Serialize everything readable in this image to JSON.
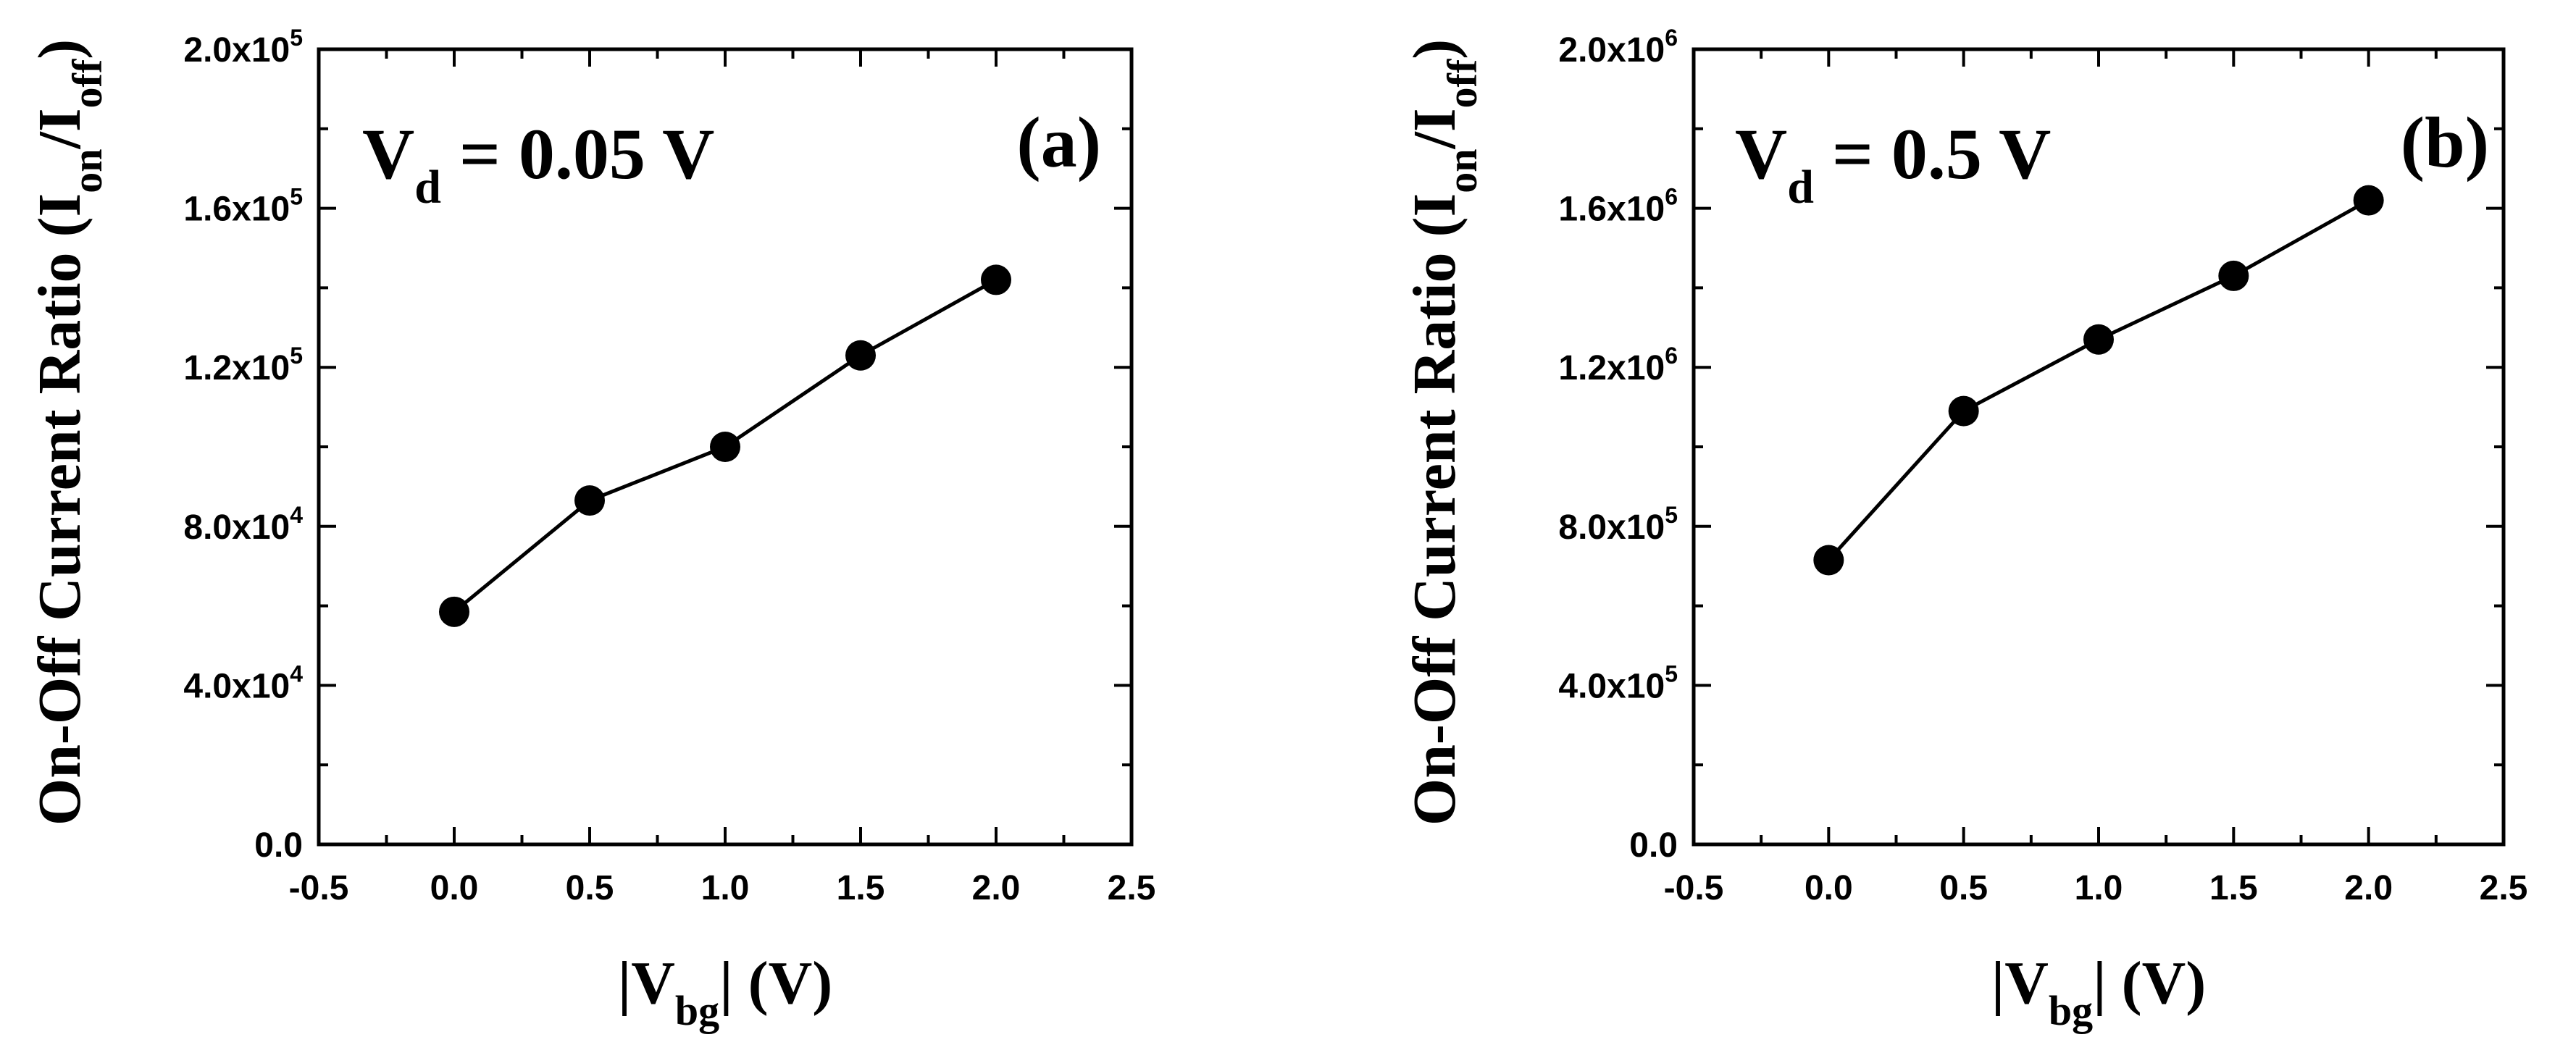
{
  "chart_data": [
    {
      "panel": "a",
      "type": "line",
      "marker": "filled-circle",
      "annotation": {
        "main": "V",
        "sub": "d",
        "rest": " = 0.05 V"
      },
      "panel_label": "(a)",
      "xlabel": {
        "pre": "|V",
        "sub": "bg",
        "post": "| (V)"
      },
      "ylabel": {
        "pre": "On-Off Current Ratio (I",
        "sub1": "on",
        "mid": "/I",
        "sub2": "off",
        "post": ")"
      },
      "xlim": [
        -0.5,
        2.5
      ],
      "ylim": [
        0,
        200000
      ],
      "x_ticks": [
        "-0.5",
        "0.0",
        "0.5",
        "1.0",
        "1.5",
        "2.0",
        "2.5"
      ],
      "y_ticks": [
        {
          "mant": "0.0",
          "exp": ""
        },
        {
          "mant": "4.0x10",
          "exp": "4"
        },
        {
          "mant": "8.0x10",
          "exp": "4"
        },
        {
          "mant": "1.2x10",
          "exp": "5"
        },
        {
          "mant": "1.6x10",
          "exp": "5"
        },
        {
          "mant": "2.0x10",
          "exp": "5"
        }
      ],
      "x": [
        0.0,
        0.5,
        1.0,
        1.5,
        2.0
      ],
      "y": [
        58500,
        86500,
        100000,
        123000,
        142000
      ]
    },
    {
      "panel": "b",
      "type": "line",
      "marker": "filled-circle",
      "annotation": {
        "main": "V",
        "sub": "d",
        "rest": " = 0.5 V"
      },
      "panel_label": "(b)",
      "xlabel": {
        "pre": "|V",
        "sub": "bg",
        "post": "| (V)"
      },
      "ylabel": {
        "pre": "On-Off Current Ratio (I",
        "sub1": "on",
        "mid": "/I",
        "sub2": "off",
        "post": ")"
      },
      "xlim": [
        -0.5,
        2.5
      ],
      "ylim": [
        0,
        2000000
      ],
      "x_ticks": [
        "-0.5",
        "0.0",
        "0.5",
        "1.0",
        "1.5",
        "2.0",
        "2.5"
      ],
      "y_ticks": [
        {
          "mant": "0.0",
          "exp": ""
        },
        {
          "mant": "4.0x10",
          "exp": "5"
        },
        {
          "mant": "8.0x10",
          "exp": "5"
        },
        {
          "mant": "1.2x10",
          "exp": "6"
        },
        {
          "mant": "1.6x10",
          "exp": "6"
        },
        {
          "mant": "2.0x10",
          "exp": "6"
        }
      ],
      "x": [
        0.0,
        0.5,
        1.0,
        1.5,
        2.0
      ],
      "y": [
        715000,
        1090000,
        1270000,
        1430000,
        1620000
      ]
    }
  ]
}
